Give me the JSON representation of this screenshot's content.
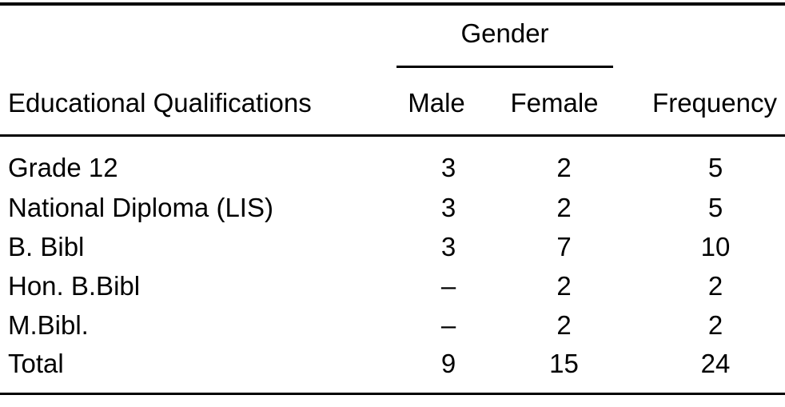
{
  "page": {
    "background": "#ffffff",
    "text_color": "#000000",
    "rule_color": "#000000"
  },
  "table": {
    "spanner_label": "Gender",
    "columns": {
      "label": "Educational Qualifications",
      "male": "Male",
      "female": "Female",
      "frequency": "Frequency"
    },
    "rows": [
      {
        "label": "Grade 12",
        "male": "3",
        "female": "2",
        "frequency": "5"
      },
      {
        "label": "National Diploma (LIS)",
        "male": "3",
        "female": "2",
        "frequency": "5"
      },
      {
        "label": "B. Bibl",
        "male": "3",
        "female": "7",
        "frequency": "10"
      },
      {
        "label": "Hon. B.Bibl",
        "male": "–",
        "female": "2",
        "frequency": "2"
      },
      {
        "label": "M.Bibl.",
        "male": "–",
        "female": "2",
        "frequency": "2"
      },
      {
        "label": "Total",
        "male": "9",
        "female": "15",
        "frequency": "24"
      }
    ]
  }
}
